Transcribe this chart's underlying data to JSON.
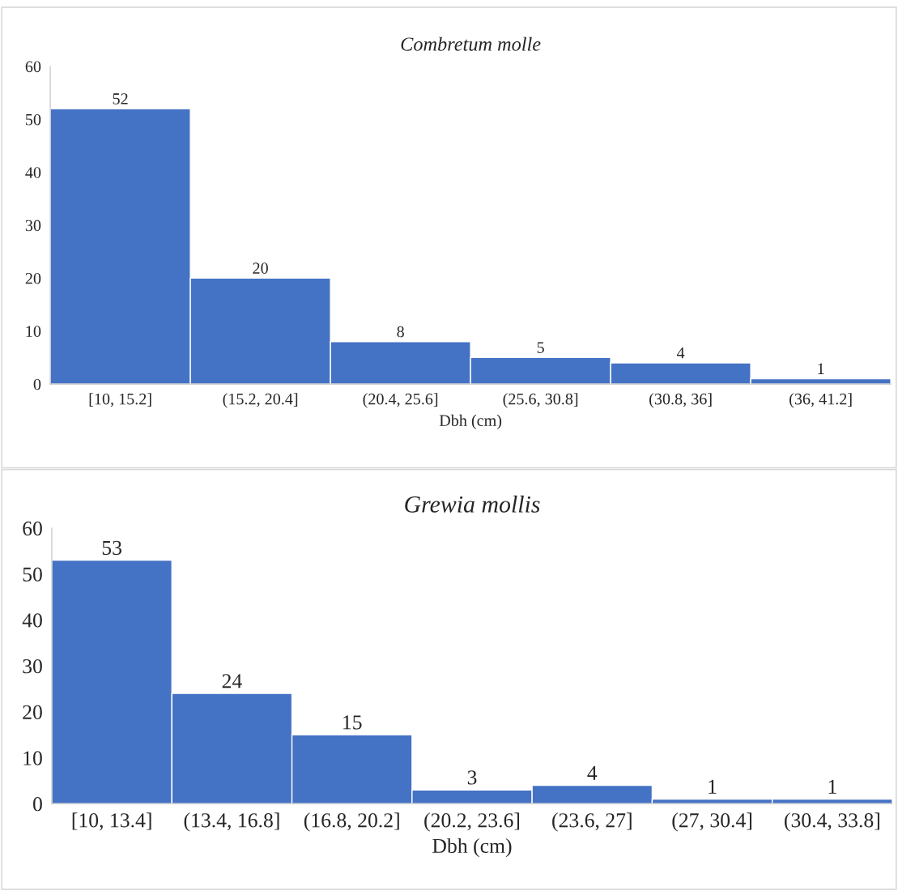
{
  "chart_data": [
    {
      "type": "bar",
      "title": "Combretum molle",
      "xlabel": "Dbh (cm)",
      "categories": [
        "[10, 15.2]",
        "(15.2, 20.4]",
        "(20.4, 25.6]",
        "(25.6, 30.8]",
        "(30.8, 36]",
        "(36, 41.2]"
      ],
      "values": [
        52,
        20,
        8,
        5,
        4,
        1
      ],
      "color": "#4472c4",
      "ylim": [
        0,
        60
      ],
      "yticks": [
        0,
        10,
        20,
        30,
        40,
        50,
        60
      ],
      "grid": false,
      "data_labels": true
    },
    {
      "type": "bar",
      "title": "Grewia mollis",
      "xlabel": "Dbh (cm)",
      "categories": [
        "[10, 13.4]",
        "(13.4, 16.8]",
        "(16.8, 20.2]",
        "(20.2, 23.6]",
        "(23.6, 27]",
        "(27, 30.4]",
        "(30.4, 33.8]"
      ],
      "values": [
        53,
        24,
        15,
        3,
        4,
        1,
        1
      ],
      "color": "#4472c4",
      "ylim": [
        0,
        60
      ],
      "yticks": [
        0,
        10,
        20,
        30,
        40,
        50,
        60
      ],
      "grid": false,
      "data_labels": true
    }
  ]
}
